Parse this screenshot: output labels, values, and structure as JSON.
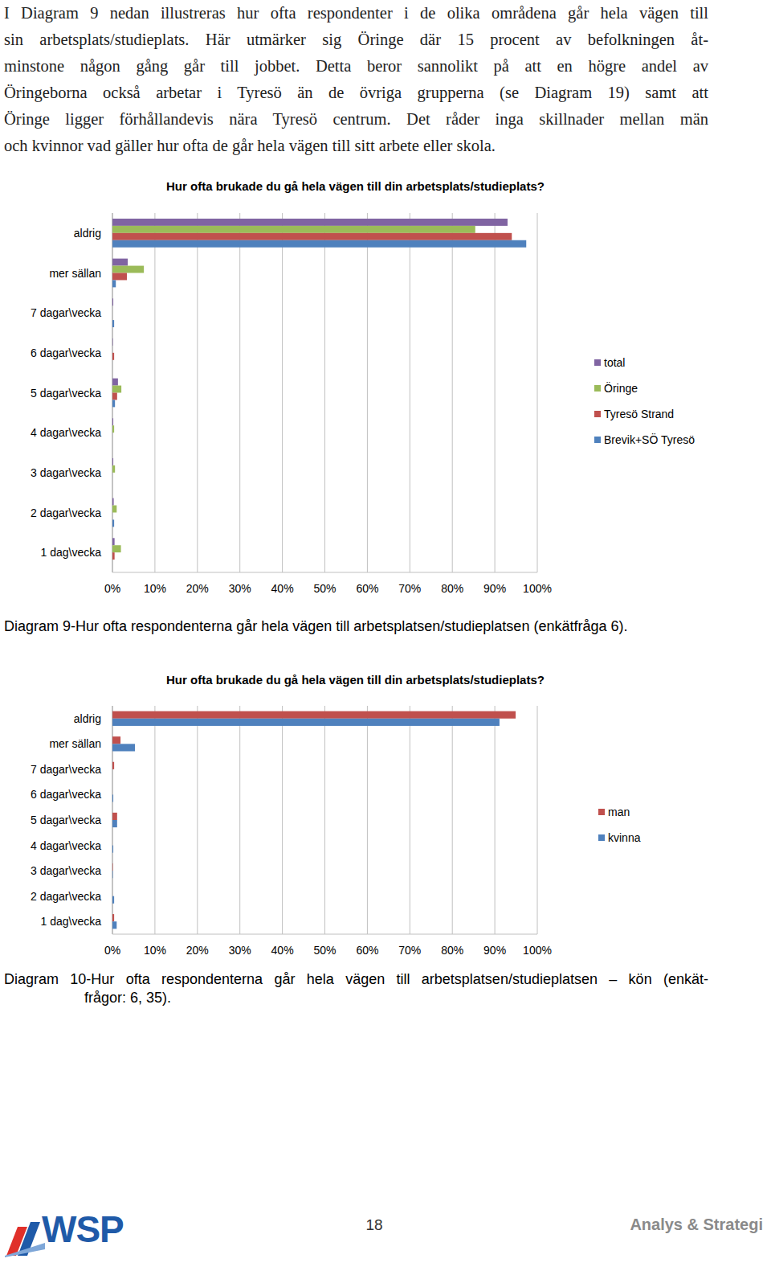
{
  "paragraph": {
    "lines": [
      "I Diagram 9 nedan illustreras hur ofta respondenter i de olika områdena går hela vägen till",
      "sin arbetsplats/studieplats. Här utmärker sig Öringe där 15 procent av befolkningen åt-",
      "minstone någon gång går till jobbet. Detta beror sannolikt på att en högre andel av",
      "Öringeborna också arbetar i Tyresö än de övriga grupperna (se Diagram 19) samt att",
      "Öringe ligger förhållandevis nära Tyresö centrum. Det råder inga skillnader mellan män",
      "och kvinnor vad gäller hur ofta de går hela vägen till sitt arbete eller skola."
    ]
  },
  "chart_data": [
    {
      "type": "bar",
      "orientation": "horizontal",
      "grid": true,
      "legend": "right",
      "title": "Hur ofta brukade du gå hela vägen till din arbetsplats/studieplats?",
      "categories": [
        "aldrig",
        "mer sällan",
        "7 dagar\\vecka",
        "6 dagar\\vecka",
        "5 dagar\\vecka",
        "4 dagar\\vecka",
        "3 dagar\\vecka",
        "2 dagar\\vecka",
        "1 dag\\vecka"
      ],
      "series": [
        {
          "name": "total",
          "color": "#8064a2",
          "values": [
            93.0,
            3.6,
            0.2,
            0.1,
            1.3,
            0.2,
            0.2,
            0.3,
            0.5
          ]
        },
        {
          "name": "Öringe",
          "color": "#9bbb59",
          "values": [
            85.4,
            7.4,
            0,
            0,
            2.1,
            0.4,
            0.6,
            1.0,
            2.0
          ]
        },
        {
          "name": "Tyresö Strand",
          "color": "#c0504d",
          "values": [
            94.0,
            3.4,
            0,
            0.4,
            1.1,
            0,
            0,
            0,
            0.5
          ]
        },
        {
          "name": "Brevik+SÖ Tyresö",
          "color": "#4f81bd",
          "values": [
            97.4,
            0.8,
            0.4,
            0,
            0.6,
            0,
            0,
            0.4,
            0
          ]
        }
      ],
      "xlim": [
        0,
        100
      ],
      "xticks": [
        {
          "value": 0,
          "label": "0%"
        },
        {
          "value": 10,
          "label": "10%"
        },
        {
          "value": 20,
          "label": "20%"
        },
        {
          "value": 30,
          "label": "30%"
        },
        {
          "value": 40,
          "label": "40%"
        },
        {
          "value": 50,
          "label": "50%"
        },
        {
          "value": 60,
          "label": "60%"
        },
        {
          "value": 70,
          "label": "70%"
        },
        {
          "value": 80,
          "label": "80%"
        },
        {
          "value": 90,
          "label": "90%"
        },
        {
          "value": 100,
          "label": "100%"
        }
      ]
    },
    {
      "type": "bar",
      "orientation": "horizontal",
      "grid": true,
      "legend": "right",
      "title": "Hur ofta brukade du gå hela vägen till din arbetsplats/studieplats?",
      "categories": [
        "aldrig",
        "mer sällan",
        "7 dagar\\vecka",
        "6 dagar\\vecka",
        "5 dagar\\vecka",
        "4 dagar\\vecka",
        "3 dagar\\vecka",
        "2 dagar\\vecka",
        "1 dag\\vecka"
      ],
      "series": [
        {
          "name": "man",
          "color": "#c0504d",
          "values": [
            94.9,
            1.9,
            0.4,
            0,
            1.1,
            0,
            0.1,
            0,
            0.4
          ]
        },
        {
          "name": "kvinna",
          "color": "#4f81bd",
          "values": [
            91.1,
            5.3,
            0,
            0.2,
            1.1,
            0.2,
            0.1,
            0.4,
            1.0
          ]
        }
      ],
      "xlim": [
        0,
        100
      ],
      "xticks": [
        {
          "value": 0,
          "label": "0%"
        },
        {
          "value": 10,
          "label": "10%"
        },
        {
          "value": 20,
          "label": "20%"
        },
        {
          "value": 30,
          "label": "30%"
        },
        {
          "value": 40,
          "label": "40%"
        },
        {
          "value": 50,
          "label": "50%"
        },
        {
          "value": 60,
          "label": "60%"
        },
        {
          "value": 70,
          "label": "70%"
        },
        {
          "value": 80,
          "label": "80%"
        },
        {
          "value": 90,
          "label": "90%"
        },
        {
          "value": 100,
          "label": "100%"
        }
      ]
    }
  ],
  "captions": [
    {
      "lines": [
        "Diagram 9-Hur ofta respondenterna går hela vägen till arbetsplatsen/studieplatsen (enkätfråga 6)."
      ]
    },
    {
      "lines": [
        "Diagram 10-Hur ofta respondenterna går hela vägen till arbetsplatsen/studieplatsen – kön (enkät-",
        "frågor: 6, 35)."
      ]
    }
  ],
  "footer": {
    "logo": "WSP",
    "page": "18",
    "section": "Analys & Strategi"
  }
}
